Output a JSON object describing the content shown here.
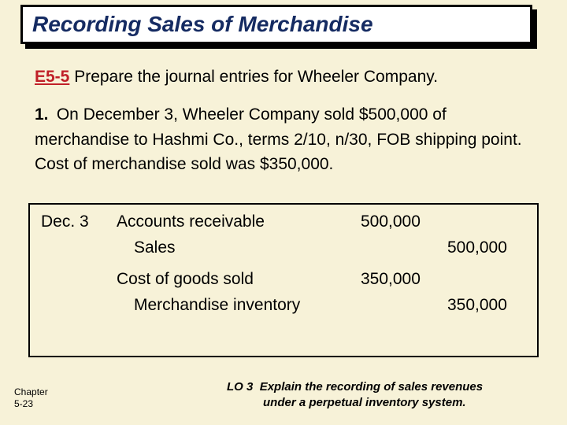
{
  "title": "Recording Sales of Merchandise",
  "exercise": {
    "code": "E5-5",
    "text": "Prepare the journal entries for Wheeler Company",
    "trailing_period": "."
  },
  "problem": {
    "number": "1.",
    "text": "On December 3, Wheeler Company sold $500,000 of merchandise to Hashmi Co., terms 2/10, n/30, FOB shipping point. Cost of merchandise sold was $350,000."
  },
  "journal": {
    "date": "Dec. 3",
    "rows": [
      {
        "account": "Accounts receivable",
        "debit": "500,000",
        "credit": "",
        "indent": false
      },
      {
        "account": "Sales",
        "debit": "",
        "credit": "500,000",
        "indent": true
      },
      {
        "spacer": true
      },
      {
        "account": "Cost of goods sold",
        "debit": "350,000",
        "credit": "",
        "indent": false
      },
      {
        "account": "Merchandise inventory",
        "debit": "",
        "credit": "350,000",
        "indent": true
      }
    ]
  },
  "footer": {
    "chapter_line1": "Chapter",
    "chapter_line2": "5-23",
    "lo_label": "LO 3",
    "lo_text1": "Explain the recording of sales revenues",
    "lo_text2": "under a perpetual inventory system."
  }
}
